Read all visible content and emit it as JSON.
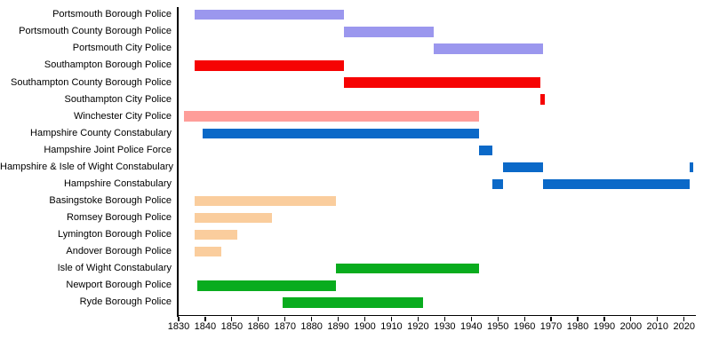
{
  "chart_data": {
    "type": "bar",
    "subtype": "horizontal-timeline-gantt",
    "title": "",
    "xlabel": "",
    "ylabel": "",
    "axis": {
      "min_year": 1830,
      "max_year": 2024,
      "ticks": [
        1830,
        1840,
        1850,
        1860,
        1870,
        1880,
        1890,
        1900,
        1910,
        1920,
        1930,
        1940,
        1950,
        1960,
        1970,
        1980,
        1990,
        2000,
        2010,
        2020
      ],
      "grid": false,
      "legend": "none"
    },
    "colors": {
      "portsmouth": "#9b97ee",
      "southampton": "#f60303",
      "winchester": "#fe9d99",
      "hampshire": "#0b69c8",
      "borough": "#facd9d",
      "isle_of_wight": "#09ac1e"
    },
    "rows": [
      {
        "label": "Portsmouth Borough Police",
        "group": "portsmouth",
        "bars": [
          {
            "start": 1836,
            "end": 1892
          }
        ]
      },
      {
        "label": "Portsmouth County Borough Police",
        "group": "portsmouth",
        "bars": [
          {
            "start": 1892,
            "end": 1926
          }
        ]
      },
      {
        "label": "Portsmouth City Police",
        "group": "portsmouth",
        "bars": [
          {
            "start": 1926,
            "end": 1967
          }
        ]
      },
      {
        "label": "Southampton Borough Police",
        "group": "southampton",
        "bars": [
          {
            "start": 1836,
            "end": 1892
          }
        ]
      },
      {
        "label": "Southampton County Borough Police",
        "group": "southampton",
        "bars": [
          {
            "start": 1892,
            "end": 1966
          }
        ]
      },
      {
        "label": "Southampton City Police",
        "group": "southampton",
        "bars": [
          {
            "start": 1966,
            "end": 1967.5
          }
        ]
      },
      {
        "label": "Winchester City Police",
        "group": "winchester",
        "bars": [
          {
            "start": 1832,
            "end": 1943
          }
        ]
      },
      {
        "label": "Hampshire County Constabulary",
        "group": "hampshire",
        "bars": [
          {
            "start": 1839,
            "end": 1943
          }
        ]
      },
      {
        "label": "Hampshire Joint Police Force",
        "group": "hampshire",
        "bars": [
          {
            "start": 1943,
            "end": 1948
          }
        ]
      },
      {
        "label": "Hampshire & Isle of Wight Constabulary",
        "group": "hampshire",
        "bars": [
          {
            "start": 1952,
            "end": 1967
          },
          {
            "start": 2022,
            "end": 2023.5
          }
        ]
      },
      {
        "label": "Hampshire Constabulary",
        "group": "hampshire",
        "bars": [
          {
            "start": 1948,
            "end": 1952
          },
          {
            "start": 1967,
            "end": 2022
          }
        ]
      },
      {
        "label": "Basingstoke Borough Police",
        "group": "borough",
        "bars": [
          {
            "start": 1836,
            "end": 1889
          }
        ]
      },
      {
        "label": "Romsey Borough Police",
        "group": "borough",
        "bars": [
          {
            "start": 1836,
            "end": 1865
          }
        ]
      },
      {
        "label": "Lymington Borough Police",
        "group": "borough",
        "bars": [
          {
            "start": 1836,
            "end": 1852
          }
        ]
      },
      {
        "label": "Andover Borough Police",
        "group": "borough",
        "bars": [
          {
            "start": 1836,
            "end": 1846
          }
        ]
      },
      {
        "label": "Isle of Wight Constabulary",
        "group": "isle_of_wight",
        "bars": [
          {
            "start": 1889,
            "end": 1943
          }
        ]
      },
      {
        "label": "Newport Borough Police",
        "group": "isle_of_wight",
        "bars": [
          {
            "start": 1837,
            "end": 1889
          }
        ]
      },
      {
        "label": "Ryde Borough Police",
        "group": "isle_of_wight",
        "bars": [
          {
            "start": 1869,
            "end": 1922
          }
        ]
      }
    ]
  }
}
